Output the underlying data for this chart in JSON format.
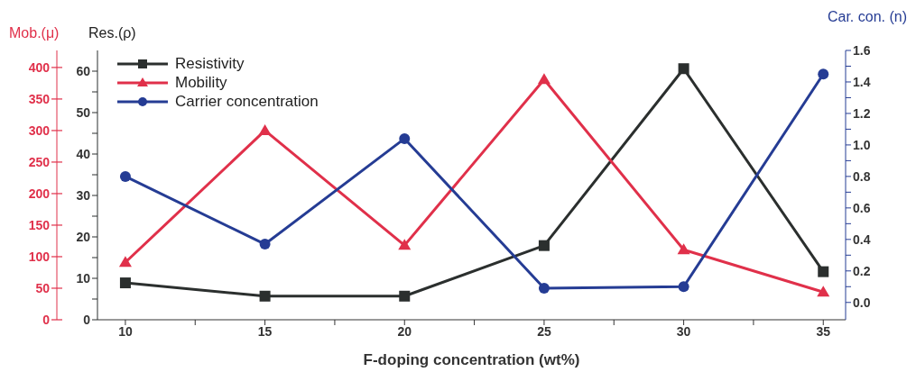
{
  "chart_data": {
    "type": "line",
    "xlabel": "F-doping concentration (wt%)",
    "ylabel": "Res.(ρ)",
    "y2label": "Car. con. (n)",
    "y3label": "Mob.(μ)",
    "x": [
      10,
      15,
      20,
      25,
      30,
      35
    ],
    "xlim": [
      9,
      35.8
    ],
    "xticks": [
      10,
      {
        "value": 12.5,
        "label": null
      },
      15,
      {
        "value": 17.5,
        "label": null
      },
      20,
      {
        "value": 22.5,
        "label": null
      },
      25,
      {
        "value": 27.5,
        "label": null
      },
      30,
      {
        "value": 32.5,
        "label": null
      },
      35
    ],
    "ylim": [
      0,
      65
    ],
    "yticks": [
      0,
      {
        "value": 5,
        "label": null
      },
      10,
      {
        "value": 15,
        "label": null
      },
      20,
      {
        "value": 25,
        "label": null
      },
      30,
      {
        "value": 35,
        "label": null
      },
      40,
      {
        "value": 45,
        "label": null
      },
      50,
      {
        "value": 55,
        "label": null
      },
      60
    ],
    "y2lim": [
      -0.11,
      1.6
    ],
    "y2ticks": [
      {
        "value": 0,
        "label": "0.0"
      },
      {
        "value": 0.1,
        "label": null
      },
      0.2,
      {
        "value": 0.3,
        "label": null
      },
      0.4,
      {
        "value": 0.5,
        "label": null
      },
      0.6,
      {
        "value": 0.7,
        "label": null
      },
      0.8,
      {
        "value": 0.9,
        "label": null
      },
      {
        "value": 1,
        "label": "1.0"
      },
      {
        "value": 1.1,
        "label": null
      },
      1.2,
      {
        "value": 1.3,
        "label": null
      },
      1.4,
      {
        "value": 1.5,
        "label": null
      },
      1.6
    ],
    "y3lim": [
      0,
      427
    ],
    "y3ticks": [
      0,
      50,
      100,
      150,
      200,
      250,
      300,
      350,
      400
    ],
    "legend": "top left",
    "grid": false,
    "line_style": "solid",
    "series": [
      {
        "name": "Resistivity",
        "color": "#2b2f2e",
        "marker": "square",
        "values": [
          8.9,
          5.7,
          5.7,
          17.9,
          60.6,
          11.6
        ]
      },
      {
        "name": "Mobility",
        "color": "#e0304a",
        "marker": "triangle",
        "axis": "y3",
        "values": [
          91,
          300,
          118,
          381,
          111,
          44
        ]
      },
      {
        "name": "Carrier concentration",
        "color": "#253c94",
        "marker": "circle",
        "axis": "y2",
        "values": [
          0.8,
          0.37,
          1.04,
          0.09,
          0.1,
          1.45
        ]
      }
    ]
  }
}
